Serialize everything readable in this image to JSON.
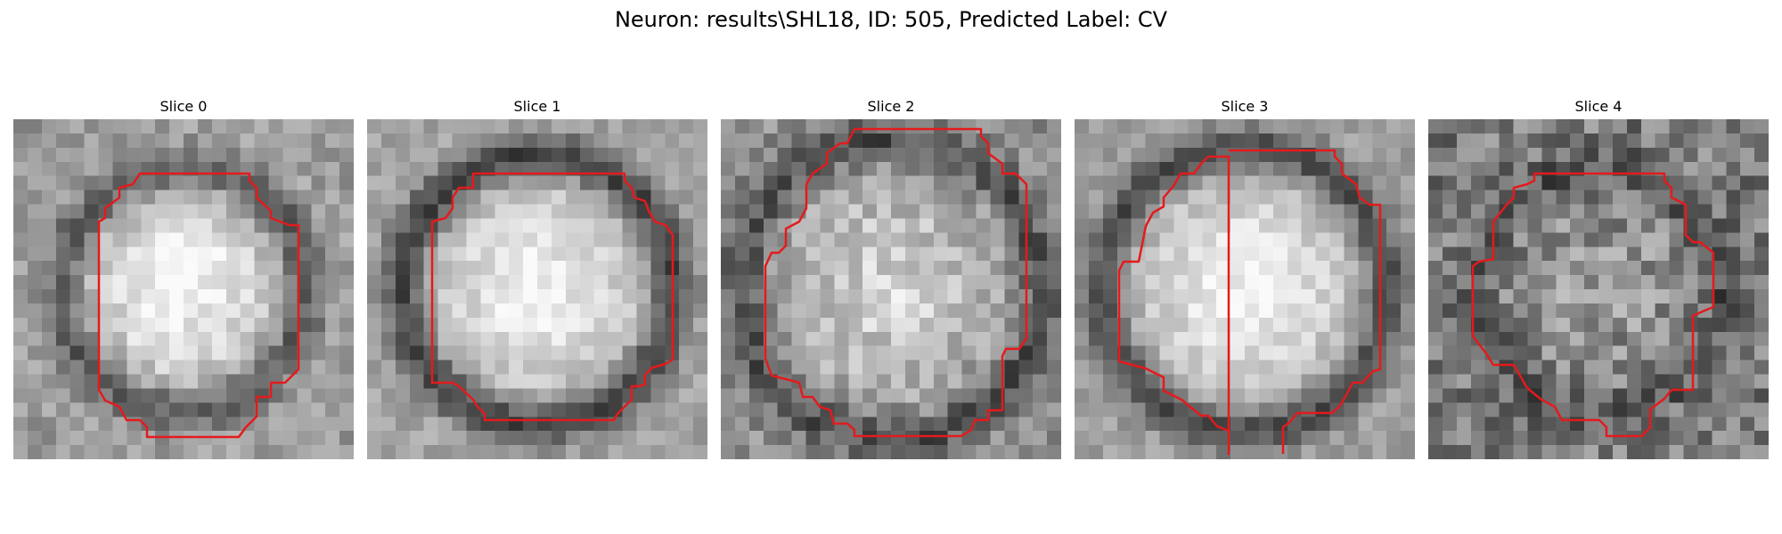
{
  "figure": {
    "title": "Neuron: results\\SHL18, ID: 505, Predicted Label: CV"
  },
  "slices": [
    {
      "title": "Slice 0",
      "image": "grayscale-micrograph-slice",
      "contour_color": "#e41a1c"
    },
    {
      "title": "Slice 1",
      "image": "grayscale-micrograph-slice",
      "contour_color": "#e41a1c"
    },
    {
      "title": "Slice 2",
      "image": "grayscale-micrograph-slice",
      "contour_color": "#e41a1c"
    },
    {
      "title": "Slice 3",
      "image": "grayscale-micrograph-slice",
      "contour_color": "#e41a1c"
    },
    {
      "title": "Slice 4",
      "image": "grayscale-micrograph-slice",
      "contour_color": "#e41a1c"
    }
  ]
}
